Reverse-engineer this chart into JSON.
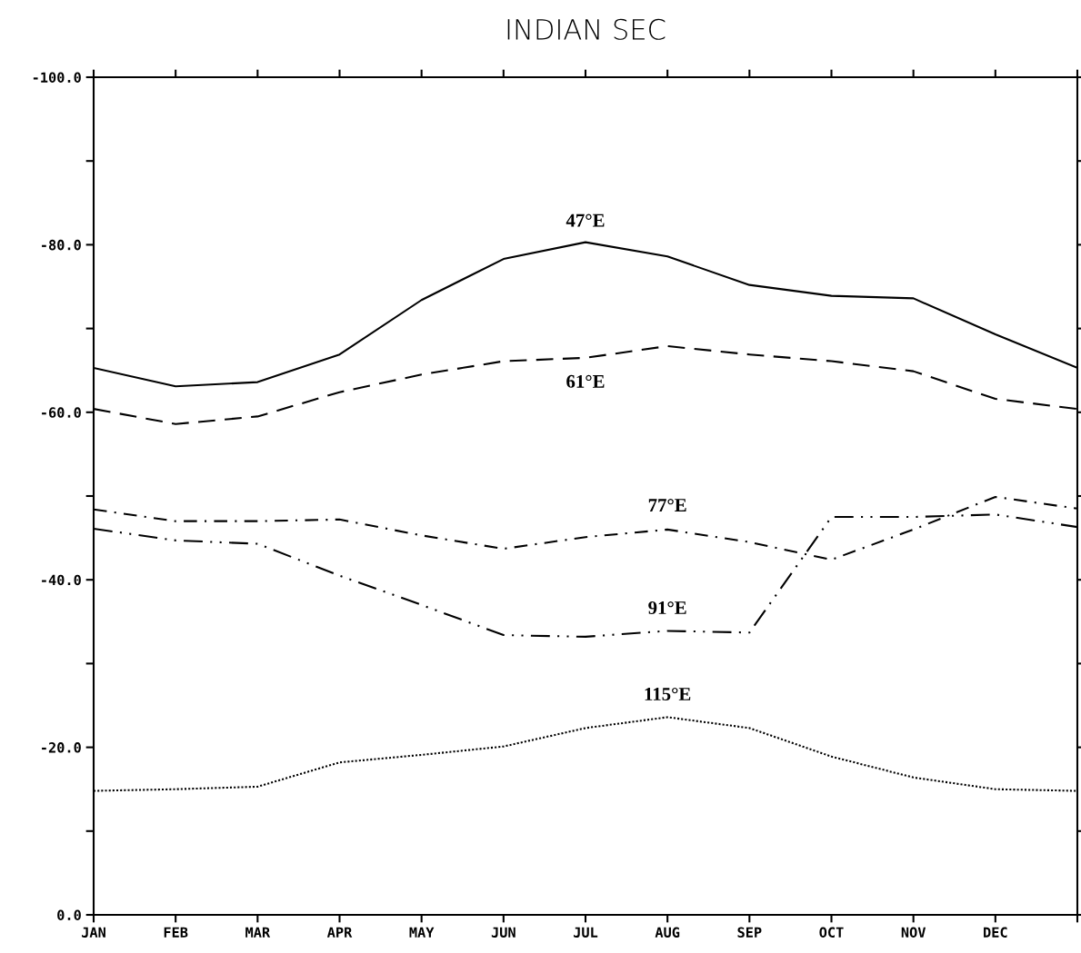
{
  "chart_data": {
    "type": "line",
    "title": "INDIAN SEC",
    "categories": [
      "JAN",
      "FEB",
      "MAR",
      "APR",
      "MAY",
      "JUN",
      "JUL",
      "AUG",
      "SEP",
      "OCT",
      "NOV",
      "DEC",
      null
    ],
    "series": [
      {
        "name": "47°E",
        "color": "#000000",
        "line_style": "solid",
        "values": [
          -65.3,
          -63.1,
          -63.6,
          -66.9,
          -73.4,
          -78.3,
          -80.3,
          -78.6,
          -75.2,
          -73.9,
          -73.6,
          -69.3,
          -65.3
        ]
      },
      {
        "name": "61°E",
        "color": "#000000",
        "line_style": "dashed",
        "values": [
          -60.4,
          -58.6,
          -59.5,
          -62.4,
          -64.5,
          -66.1,
          -66.5,
          -67.9,
          -66.9,
          -66.1,
          -64.9,
          -61.6,
          -60.4
        ]
      },
      {
        "name": "77°E",
        "color": "#000000",
        "line_style": "dashdot",
        "values": [
          -48.4,
          -47.0,
          -47.0,
          -47.2,
          -45.3,
          -43.7,
          -45.1,
          -46.0,
          -44.5,
          -42.4,
          -46.0,
          -49.9,
          -48.5
        ]
      },
      {
        "name": "91°E",
        "color": "#000000",
        "line_style": "dashdotdot",
        "values": [
          -46.1,
          -44.7,
          -44.3,
          -40.5,
          -37.0,
          -33.4,
          -33.2,
          -33.9,
          -33.7,
          -47.5,
          -47.5,
          -47.8,
          -46.3
        ]
      },
      {
        "name": "115°E",
        "color": "#000000",
        "line_style": "dotted",
        "values": [
          -14.8,
          -15.0,
          -15.3,
          -18.2,
          -19.1,
          -20.1,
          -22.3,
          -23.6,
          -22.3,
          -18.9,
          -16.4,
          -15.0,
          -14.8
        ]
      }
    ],
    "ylim": [
      0,
      -100
    ],
    "yticks": [
      {
        "value": -100,
        "label": "-100.0"
      },
      {
        "value": -90,
        "label": null
      },
      {
        "value": -80,
        "label": "-80.0"
      },
      {
        "value": -70,
        "label": null
      },
      {
        "value": -60,
        "label": "-60.0"
      },
      {
        "value": -50,
        "label": null
      },
      {
        "value": -40,
        "label": "-40.0"
      },
      {
        "value": -30,
        "label": null
      },
      {
        "value": -20,
        "label": "-20.0"
      },
      {
        "value": -10,
        "label": null
      },
      {
        "value": 0,
        "label": "0.0"
      }
    ],
    "grid": false,
    "legend": false
  }
}
